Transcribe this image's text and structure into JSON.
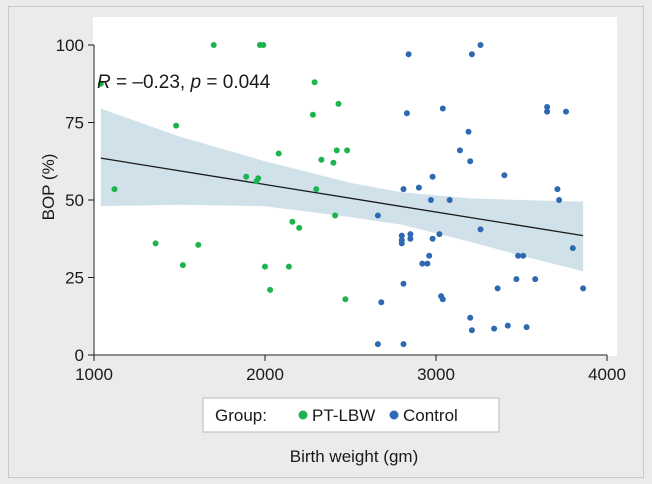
{
  "chart_data": {
    "type": "scatter",
    "xlabel": "Birth weight (gm)",
    "ylabel": "BOP (%)",
    "xlim": [
      1000,
      4000
    ],
    "ylim": [
      0,
      100
    ],
    "xticks": [
      1000,
      2000,
      3000,
      4000
    ],
    "yticks": [
      0,
      25,
      50,
      75,
      100
    ],
    "annotation": {
      "r_label": "R",
      "r_text": " = –0.23, ",
      "p_label": "p",
      "p_text": " = 0.044"
    },
    "legend": {
      "title": "Group:",
      "position": "bottom"
    },
    "colors": {
      "PT-LBW": "#1db34e",
      "Control": "#2f69b1",
      "band": "#c9dce6",
      "line": "#1a1a1a"
    },
    "regression": {
      "start": [
        1040,
        63.5
      ],
      "end": [
        3860,
        38.5
      ],
      "band_upper": [
        [
          1040,
          79.5
        ],
        [
          1500,
          70.5
        ],
        [
          2000,
          62.5
        ],
        [
          2500,
          55.5
        ],
        [
          2800,
          52.5
        ],
        [
          3200,
          50.5
        ],
        [
          3500,
          50.0
        ],
        [
          3860,
          49.5
        ]
      ],
      "band_lower": [
        [
          1040,
          48.0
        ],
        [
          1500,
          48.5
        ],
        [
          2000,
          48.0
        ],
        [
          2500,
          44.5
        ],
        [
          2800,
          42.0
        ],
        [
          3200,
          36.5
        ],
        [
          3500,
          32.0
        ],
        [
          3860,
          27.0
        ]
      ]
    },
    "series": [
      {
        "name": "PT-LBW",
        "points": [
          [
            1040,
            87.5
          ],
          [
            1120,
            53.5
          ],
          [
            1360,
            36
          ],
          [
            1480,
            74
          ],
          [
            1520,
            29
          ],
          [
            1610,
            35.5
          ],
          [
            1700,
            100
          ],
          [
            1890,
            57.5
          ],
          [
            1950,
            56
          ],
          [
            1960,
            57
          ],
          [
            1970,
            100
          ],
          [
            1990,
            100
          ],
          [
            2000,
            28.5
          ],
          [
            2030,
            21
          ],
          [
            2080,
            65
          ],
          [
            2140,
            28.5
          ],
          [
            2160,
            43
          ],
          [
            2200,
            41
          ],
          [
            2280,
            77.5
          ],
          [
            2290,
            88
          ],
          [
            2300,
            53.5
          ],
          [
            2330,
            63
          ],
          [
            2400,
            62
          ],
          [
            2410,
            45
          ],
          [
            2430,
            81
          ],
          [
            2470,
            18
          ],
          [
            2480,
            66
          ],
          [
            2420,
            66
          ]
        ]
      },
      {
        "name": "Control",
        "points": [
          [
            2660,
            45
          ],
          [
            2660,
            3.5
          ],
          [
            2680,
            17
          ],
          [
            2800,
            38.5
          ],
          [
            2800,
            37
          ],
          [
            2800,
            36
          ],
          [
            2810,
            53.5
          ],
          [
            2810,
            23
          ],
          [
            2810,
            3.5
          ],
          [
            2830,
            78
          ],
          [
            2840,
            97
          ],
          [
            2850,
            39
          ],
          [
            2850,
            37.5
          ],
          [
            2900,
            54
          ],
          [
            2920,
            29.5
          ],
          [
            2950,
            29.5
          ],
          [
            2960,
            32
          ],
          [
            2970,
            50
          ],
          [
            2980,
            37.5
          ],
          [
            2980,
            57.5
          ],
          [
            3020,
            39
          ],
          [
            3030,
            19
          ],
          [
            3040,
            18
          ],
          [
            3040,
            79.5
          ],
          [
            3080,
            50
          ],
          [
            3140,
            66
          ],
          [
            3190,
            72
          ],
          [
            3200,
            62.5
          ],
          [
            3200,
            12
          ],
          [
            3210,
            97
          ],
          [
            3210,
            8
          ],
          [
            3260,
            100
          ],
          [
            3260,
            40.5
          ],
          [
            3340,
            8.5
          ],
          [
            3360,
            21.5
          ],
          [
            3400,
            58
          ],
          [
            3420,
            9.5
          ],
          [
            3470,
            24.5
          ],
          [
            3480,
            32
          ],
          [
            3510,
            32
          ],
          [
            3530,
            9
          ],
          [
            3580,
            24.5
          ],
          [
            3650,
            80
          ],
          [
            3650,
            78.5
          ],
          [
            3710,
            53.5
          ],
          [
            3720,
            50
          ],
          [
            3760,
            78.5
          ],
          [
            3800,
            34.5
          ],
          [
            3860,
            21.5
          ]
        ]
      }
    ]
  }
}
